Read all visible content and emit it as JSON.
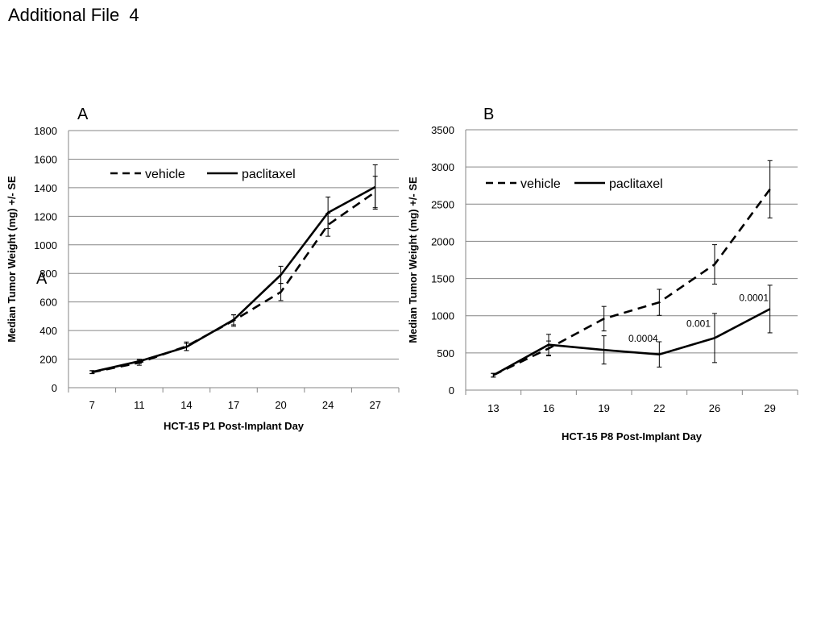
{
  "page": {
    "title": "Additional File  4"
  },
  "chart_data": [
    {
      "type": "line",
      "panel_label": "A",
      "stray_label": "A",
      "xlabel": "HCT-15 P1 Post-Implant Day",
      "ylabel": "Median Tumor Weight (mg) +/- SE",
      "categories": [
        "7",
        "11",
        "14",
        "17",
        "20",
        "24",
        "27"
      ],
      "ylim": [
        0,
        1800
      ],
      "yticks": [
        0,
        200,
        400,
        600,
        800,
        1000,
        1200,
        1400,
        1600,
        1800
      ],
      "grid": true,
      "legend_position": "top-left",
      "series": [
        {
          "name": "vehicle",
          "style": "dashed",
          "values": [
            108,
            175,
            290,
            470,
            670,
            1140,
            1370
          ],
          "error": [
            10,
            18,
            30,
            40,
            60,
            80,
            110
          ]
        },
        {
          "name": "paclitaxel",
          "style": "solid",
          "values": [
            110,
            185,
            285,
            475,
            790,
            1225,
            1405
          ],
          "error": [
            10,
            15,
            25,
            35,
            60,
            110,
            155
          ]
        }
      ],
      "annotations": []
    },
    {
      "type": "line",
      "panel_label": "B",
      "xlabel": "HCT-15 P8 Post-Implant Day",
      "ylabel": "Median Tumor Weight (mg) +/- SE",
      "categories": [
        "13",
        "16",
        "19",
        "22",
        "26",
        "29"
      ],
      "ylim": [
        0,
        3500
      ],
      "yticks": [
        0,
        500,
        1000,
        1500,
        2000,
        2500,
        3000,
        3500
      ],
      "grid": true,
      "legend_position": "top-left",
      "series": [
        {
          "name": "vehicle",
          "style": "dashed",
          "values": [
            200,
            560,
            960,
            1180,
            1690,
            2700
          ],
          "error": [
            25,
            100,
            165,
            175,
            265,
            385
          ]
        },
        {
          "name": "paclitaxel",
          "style": "solid",
          "values": [
            200,
            610,
            540,
            480,
            700,
            1090
          ],
          "error": [
            25,
            140,
            190,
            170,
            330,
            320
          ]
        }
      ],
      "annotations": [
        {
          "text": "0.0004",
          "x": "22",
          "y": 650
        },
        {
          "text": "0.001",
          "x": "26",
          "y": 850
        },
        {
          "text": "0.0001",
          "x": "29",
          "y": 1200
        }
      ]
    }
  ]
}
